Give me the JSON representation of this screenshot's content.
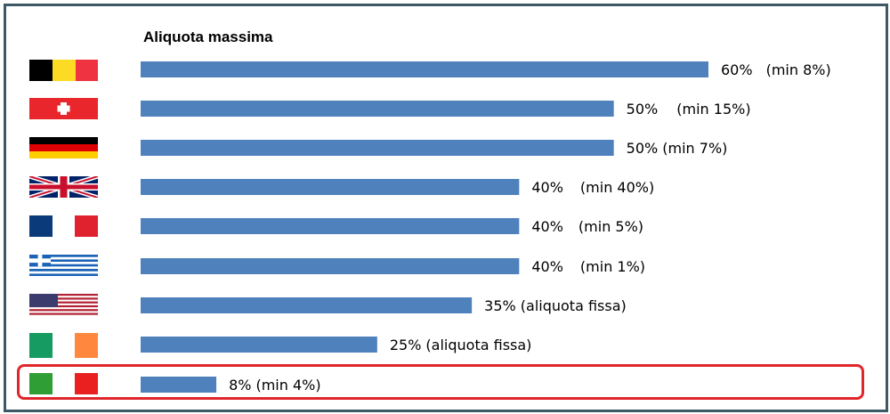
{
  "title": "Aliquota massima",
  "colors": {
    "bar": "#4f81bd",
    "highlight": "#e0262b",
    "frame": "#3c5a66"
  },
  "chart_data": {
    "type": "bar",
    "orientation": "horizontal",
    "title": "Aliquota massima",
    "xlim": [
      0,
      60
    ],
    "grid": false,
    "categories": [
      "belgium-flag",
      "switzerland-flag",
      "germany-flag",
      "uk-flag",
      "france-flag",
      "greece-flag",
      "usa-flag",
      "ireland-flag",
      "italy-flag"
    ],
    "values": [
      60,
      50,
      50,
      40,
      40,
      40,
      35,
      25,
      8
    ],
    "value_labels": [
      "60%",
      "50%",
      "50%",
      "40%",
      "40%",
      "40%",
      "35%",
      "25%",
      "8%"
    ],
    "notes": [
      "(min 8%)",
      "(min 15%)",
      "(min 7%)",
      "(min 40%)",
      "(min 5%)",
      "(min 1%)",
      "(aliquota fissa)",
      "(aliquota fissa)",
      "(min 4%)"
    ],
    "highlighted_index": 8
  }
}
